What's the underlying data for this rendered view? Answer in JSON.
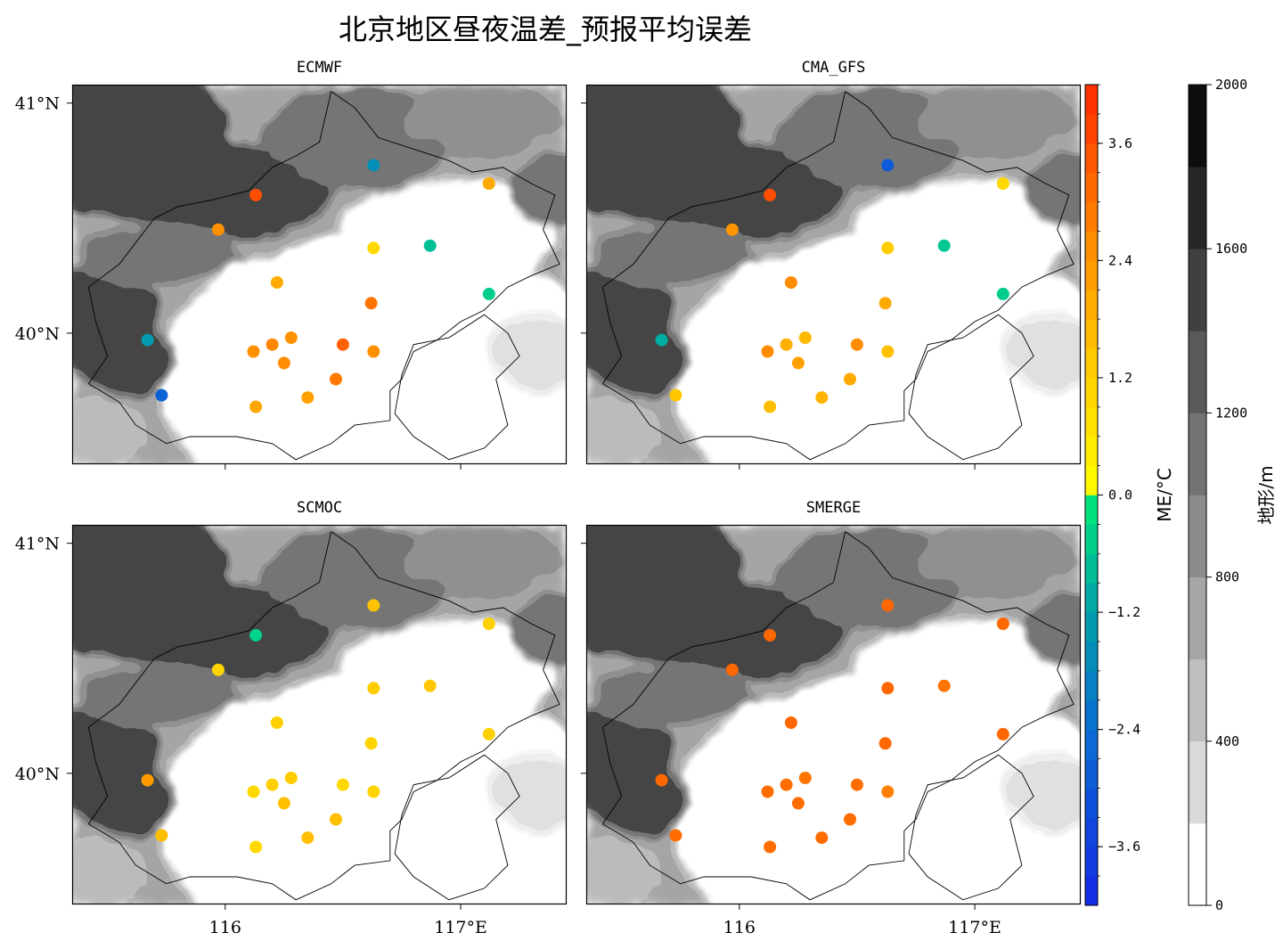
{
  "chart_data": {
    "type": "scatter",
    "title": "北京地区昼夜温差_预报平均误差",
    "lon_range": [
      115.35,
      117.45
    ],
    "lat_range": [
      39.43,
      41.08
    ],
    "lat_ticks": [
      "41°N",
      "40°N"
    ],
    "lon_ticks": [
      "116",
      "117°E"
    ],
    "me_colorbar": {
      "label": "ME/°C",
      "range": [
        -4.2,
        4.2
      ],
      "ticks": [
        "3.6",
        "2.4",
        "1.2",
        "0.0",
        "−1.2",
        "−2.4",
        "−3.6"
      ]
    },
    "terrain_colorbar": {
      "label": "地形/m",
      "range": [
        0,
        2000
      ],
      "ticks": [
        "2000",
        "1600",
        "1200",
        "800",
        "400",
        "0"
      ]
    },
    "stations": [
      {
        "lon": 116.13,
        "lat": 40.6
      },
      {
        "lon": 116.63,
        "lat": 40.73
      },
      {
        "lon": 117.12,
        "lat": 40.65
      },
      {
        "lon": 115.97,
        "lat": 40.45
      },
      {
        "lon": 116.63,
        "lat": 40.37
      },
      {
        "lon": 116.87,
        "lat": 40.38
      },
      {
        "lon": 116.22,
        "lat": 40.22
      },
      {
        "lon": 117.12,
        "lat": 40.17
      },
      {
        "lon": 116.62,
        "lat": 40.13
      },
      {
        "lon": 115.67,
        "lat": 39.97
      },
      {
        "lon": 116.28,
        "lat": 39.98
      },
      {
        "lon": 116.2,
        "lat": 39.95
      },
      {
        "lon": 116.5,
        "lat": 39.95
      },
      {
        "lon": 116.12,
        "lat": 39.92
      },
      {
        "lon": 116.63,
        "lat": 39.92
      },
      {
        "lon": 116.25,
        "lat": 39.87
      },
      {
        "lon": 116.47,
        "lat": 39.8
      },
      {
        "lon": 115.73,
        "lat": 39.73
      },
      {
        "lon": 116.35,
        "lat": 39.72
      },
      {
        "lon": 116.13,
        "lat": 39.68
      }
    ],
    "panels": [
      {
        "name": "ECMWF",
        "values": [
          3.6,
          -1.6,
          2.0,
          2.5,
          1.0,
          -0.7,
          2.0,
          -0.5,
          3.0,
          -1.3,
          2.5,
          2.7,
          3.3,
          2.5,
          2.5,
          2.6,
          2.9,
          -2.7,
          2.2,
          2.1
        ]
      },
      {
        "name": "CMA_GFS",
        "values": [
          3.6,
          -2.9,
          1.0,
          2.4,
          1.3,
          -0.6,
          2.6,
          -0.5,
          2.0,
          -1.0,
          1.7,
          1.9,
          2.6,
          2.6,
          1.6,
          2.2,
          2.0,
          1.4,
          1.8,
          1.6
        ]
      },
      {
        "name": "SCMOC",
        "values": [
          -0.4,
          1.5,
          1.2,
          1.1,
          1.3,
          1.4,
          1.2,
          1.2,
          1.1,
          2.3,
          1.3,
          1.2,
          1.0,
          1.0,
          1.1,
          1.6,
          1.6,
          1.6,
          1.6,
          1.0
        ]
      },
      {
        "name": "SMERGE",
        "values": [
          3.2,
          3.2,
          3.2,
          3.2,
          3.2,
          3.0,
          3.2,
          3.2,
          3.2,
          3.2,
          3.0,
          3.1,
          3.1,
          3.1,
          2.8,
          3.1,
          3.1,
          3.1,
          3.1,
          3.1
        ]
      }
    ]
  }
}
